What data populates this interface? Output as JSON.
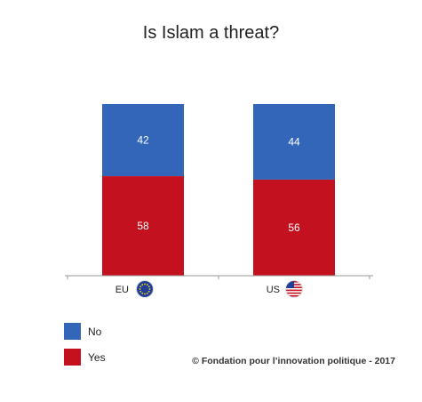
{
  "chart_data": {
    "type": "bar",
    "stacked": true,
    "title": "Is Islam a threat?",
    "categories": [
      "EU",
      "US"
    ],
    "series": [
      {
        "name": "Yes",
        "values": [
          58,
          56
        ],
        "color": "#c4111f"
      },
      {
        "name": "No",
        "values": [
          42,
          44
        ],
        "color": "#3366b9"
      }
    ],
    "ylim": [
      0,
      100
    ],
    "grid": false,
    "legend": "bottom-left",
    "category_icons": [
      "eu-flag-icon",
      "us-flag-icon"
    ]
  },
  "source": "© Fondation pour l’innovation politique - 2017"
}
